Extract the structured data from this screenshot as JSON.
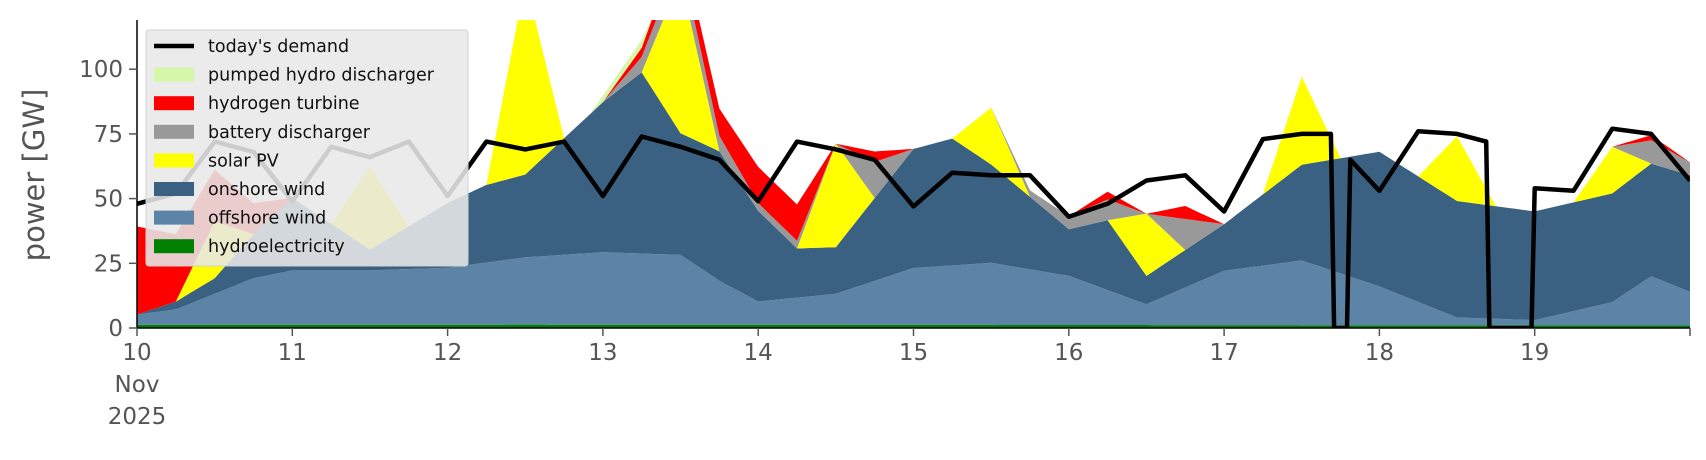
{
  "chart_data": {
    "type": "area",
    "title": "",
    "xlabel": "",
    "ylabel": "power [GW]",
    "ylim": [
      0,
      119
    ],
    "xlim": [
      "2025-11-10 00:00",
      "2025-11-20 00:00"
    ],
    "grid": false,
    "legend_position": "top-left",
    "x_ticks": [
      {
        "date": "2025-11-10",
        "label": "10",
        "sub": [
          "Nov",
          "2025"
        ]
      },
      {
        "date": "2025-11-11",
        "label": "11"
      },
      {
        "date": "2025-11-12",
        "label": "12"
      },
      {
        "date": "2025-11-13",
        "label": "13"
      },
      {
        "date": "2025-11-14",
        "label": "14"
      },
      {
        "date": "2025-11-15",
        "label": "15"
      },
      {
        "date": "2025-11-16",
        "label": "16"
      },
      {
        "date": "2025-11-17",
        "label": "17"
      },
      {
        "date": "2025-11-18",
        "label": "18"
      },
      {
        "date": "2025-11-19",
        "label": "19"
      },
      {
        "date": "2025-11-20",
        "label": ""
      }
    ],
    "y_ticks": [
      0,
      25,
      50,
      75,
      100
    ],
    "legend": [
      {
        "name": "today's demand",
        "color": "#000000",
        "kind": "line"
      },
      {
        "name": "pumped hydro discharger",
        "color": "#d4f7a8",
        "kind": "patch"
      },
      {
        "name": "hydrogen turbine",
        "color": "#ff0000",
        "kind": "patch"
      },
      {
        "name": "battery discharger",
        "color": "#999999",
        "kind": "patch"
      },
      {
        "name": "solar PV",
        "color": "#ffff00",
        "kind": "patch"
      },
      {
        "name": "onshore wind",
        "color": "#3b6182",
        "kind": "patch"
      },
      {
        "name": "offshore wind",
        "color": "#5c84a6",
        "kind": "patch"
      },
      {
        "name": "hydroelectricity",
        "color": "#008000",
        "kind": "patch"
      }
    ],
    "stack_order": [
      "hydroelectricity",
      "offshore wind",
      "onshore wind",
      "solar PV",
      "battery discharger",
      "hydrogen turbine",
      "pumped hydro discharger"
    ],
    "series": [
      {
        "name": "hydroelectricity",
        "x": [
          "2025-11-10 00:00",
          "2025-11-12 12:00",
          "2025-11-15 00:00",
          "2025-11-17 12:00",
          "2025-11-20 00:00"
        ],
        "values": [
          1.2,
          1.3,
          1.2,
          1.1,
          1.0
        ]
      },
      {
        "name": "offshore wind",
        "x": [
          "2025-11-10 00:00",
          "2025-11-10 06:00",
          "2025-11-10 12:00",
          "2025-11-10 18:00",
          "2025-11-11 00:00",
          "2025-11-11 12:00",
          "2025-11-12 00:00",
          "2025-11-12 12:00",
          "2025-11-13 00:00",
          "2025-11-13 12:00",
          "2025-11-13 18:00",
          "2025-11-14 00:00",
          "2025-11-14 12:00",
          "2025-11-15 00:00",
          "2025-11-15 12:00",
          "2025-11-16 00:00",
          "2025-11-16 12:00",
          "2025-11-17 00:00",
          "2025-11-17 12:00",
          "2025-11-18 00:00",
          "2025-11-18 12:00",
          "2025-11-19 00:00",
          "2025-11-19 12:00",
          "2025-11-19 18:00",
          "2025-11-20 00:00"
        ],
        "values": [
          4,
          6,
          12,
          18,
          21,
          21,
          22,
          26,
          28,
          27,
          17,
          9,
          12,
          22,
          24,
          19,
          8,
          21,
          25,
          15,
          3,
          2,
          9,
          19,
          13
        ]
      },
      {
        "name": "onshore wind",
        "x": [
          "2025-11-10 00:00",
          "2025-11-10 12:00",
          "2025-11-11 00:00",
          "2025-11-11 12:00",
          "2025-11-12 00:00",
          "2025-11-12 06:00",
          "2025-11-12 12:00",
          "2025-11-13 00:00",
          "2025-11-13 06:00",
          "2025-11-13 12:00",
          "2025-11-13 18:00",
          "2025-11-14 00:00",
          "2025-11-14 06:00",
          "2025-11-14 12:00",
          "2025-11-15 00:00",
          "2025-11-15 06:00",
          "2025-11-15 12:00",
          "2025-11-16 00:00",
          "2025-11-16 06:00",
          "2025-11-16 12:00",
          "2025-11-17 00:00",
          "2025-11-17 12:00",
          "2025-11-18 00:00",
          "2025-11-18 12:00",
          "2025-11-19 00:00",
          "2025-11-19 12:00",
          "2025-11-20 00:00"
        ],
        "values": [
          0,
          6,
          28,
          8,
          25,
          30,
          32,
          58,
          70,
          47,
          50,
          35,
          19,
          18,
          46,
          49,
          38,
          18,
          27,
          11,
          18,
          37,
          52,
          45,
          42,
          42,
          45
        ]
      },
      {
        "name": "solar PV",
        "x": [
          "2025-11-10 00:00",
          "2025-11-10 06:00",
          "2025-11-10 12:00",
          "2025-11-10 18:00",
          "2025-11-11 06:00",
          "2025-11-11 12:00",
          "2025-11-11 18:00",
          "2025-11-12 06:00",
          "2025-11-12 12:00",
          "2025-11-12 18:00",
          "2025-11-13 06:00",
          "2025-11-13 12:00",
          "2025-11-13 18:00",
          "2025-11-14 06:00",
          "2025-11-14 12:00",
          "2025-11-14 18:00",
          "2025-11-15 06:00",
          "2025-11-15 12:00",
          "2025-11-15 18:00",
          "2025-11-16 06:00",
          "2025-11-16 12:00",
          "2025-11-16 18:00",
          "2025-11-17 06:00",
          "2025-11-17 12:00",
          "2025-11-17 18:00",
          "2025-11-18 06:00",
          "2025-11-18 12:00",
          "2025-11-18 18:00",
          "2025-11-19 06:00",
          "2025-11-19 12:00",
          "2025-11-19 18:00"
        ],
        "values": [
          0,
          0,
          22,
          0,
          0,
          32,
          0,
          0,
          75,
          0,
          0,
          60,
          0,
          0,
          40,
          0,
          0,
          22,
          0,
          0,
          24,
          0,
          0,
          34,
          0,
          0,
          25,
          0,
          0,
          18,
          0
        ]
      },
      {
        "name": "battery discharger",
        "x": [
          "2025-11-10 00:00",
          "2025-11-10 12:00",
          "2025-11-11 00:00",
          "2025-11-11 12:00",
          "2025-11-12 00:00",
          "2025-11-12 12:00",
          "2025-11-13 00:00",
          "2025-11-13 06:00",
          "2025-11-13 12:00",
          "2025-11-13 18:00",
          "2025-11-14 00:00",
          "2025-11-14 06:00",
          "2025-11-14 12:00",
          "2025-11-14 18:00",
          "2025-11-15 00:00",
          "2025-11-15 12:00",
          "2025-11-16 00:00",
          "2025-11-16 06:00",
          "2025-11-16 12:00",
          "2025-11-16 18:00",
          "2025-11-17 00:00",
          "2025-11-17 12:00",
          "2025-11-18 00:00",
          "2025-11-18 12:00",
          "2025-11-19 00:00",
          "2025-11-19 12:00",
          "2025-11-19 18:00",
          "2025-11-20 00:00"
        ],
        "values": [
          0,
          0,
          0,
          0,
          0,
          0,
          0,
          6,
          8,
          6,
          3,
          3,
          0,
          14,
          0,
          0,
          5,
          8,
          0,
          12,
          0,
          0,
          0,
          0,
          0,
          0,
          9,
          5
        ]
      },
      {
        "name": "hydrogen turbine",
        "x": [
          "2025-11-10 00:00",
          "2025-11-10 06:00",
          "2025-11-10 12:00",
          "2025-11-10 18:00",
          "2025-11-11 00:00",
          "2025-11-11 12:00",
          "2025-11-12 00:00",
          "2025-11-13 00:00",
          "2025-11-14 00:00",
          "2025-11-14 06:00",
          "2025-11-14 12:00",
          "2025-11-14 18:00",
          "2025-11-15 00:00",
          "2025-11-16 00:00",
          "2025-11-16 06:00",
          "2025-11-16 12:00",
          "2025-11-16 18:00",
          "2025-11-17 00:00",
          "2025-11-18 00:00",
          "2025-11-19 00:00",
          "2025-11-19 12:00",
          "2025-11-19 18:00",
          "2025-11-20 00:00"
        ],
        "values": [
          34,
          26,
          20,
          12,
          0,
          0,
          0,
          0,
          14,
          14,
          0,
          4,
          0,
          0,
          3,
          0,
          5,
          0,
          0,
          0,
          0,
          2,
          0
        ]
      },
      {
        "name": "pumped hydro discharger",
        "x": [
          "2025-11-10 00:00",
          "2025-11-12 00:00",
          "2025-11-12 22:00",
          "2025-11-13 00:00",
          "2025-11-13 06:00",
          "2025-11-13 08:00",
          "2025-11-14 00:00",
          "2025-11-20 00:00"
        ],
        "values": [
          0,
          0,
          0,
          2.5,
          3,
          0,
          0,
          0
        ]
      },
      {
        "name": "today's demand",
        "x": [
          "2025-11-10 00:00",
          "2025-11-10 06:00",
          "2025-11-10 12:00",
          "2025-11-10 18:00",
          "2025-11-11 00:00",
          "2025-11-11 06:00",
          "2025-11-11 12:00",
          "2025-11-11 18:00",
          "2025-11-12 00:00",
          "2025-11-12 06:00",
          "2025-11-12 12:00",
          "2025-11-12 18:00",
          "2025-11-13 00:00",
          "2025-11-13 06:00",
          "2025-11-13 12:00",
          "2025-11-13 18:00",
          "2025-11-14 00:00",
          "2025-11-14 06:00",
          "2025-11-14 12:00",
          "2025-11-14 18:00",
          "2025-11-15 00:00",
          "2025-11-15 06:00",
          "2025-11-15 12:00",
          "2025-11-15 18:00",
          "2025-11-16 00:00",
          "2025-11-16 06:00",
          "2025-11-16 12:00",
          "2025-11-16 18:00",
          "2025-11-17 00:00",
          "2025-11-17 06:00",
          "2025-11-17 12:00",
          "2025-11-17 16:30",
          "2025-11-17 17:00",
          "2025-11-17 19:00",
          "2025-11-17 19:30",
          "2025-11-18 00:00",
          "2025-11-18 06:00",
          "2025-11-18 12:00",
          "2025-11-18 16:30",
          "2025-11-18 17:00",
          "2025-11-18 23:30",
          "2025-11-19 00:00",
          "2025-11-19 06:00",
          "2025-11-19 12:00",
          "2025-11-19 18:00",
          "2025-11-20 00:00"
        ],
        "values": [
          48,
          52,
          72,
          68,
          49,
          70,
          66,
          72,
          51,
          72,
          69,
          72,
          51,
          74,
          70,
          65,
          49,
          72,
          69,
          65,
          47,
          60,
          59,
          59,
          43,
          48,
          57,
          59,
          45,
          73,
          75,
          75,
          0,
          0,
          65,
          53,
          76,
          75,
          72,
          0,
          0,
          54,
          53,
          77,
          75,
          57
        ]
      }
    ]
  }
}
